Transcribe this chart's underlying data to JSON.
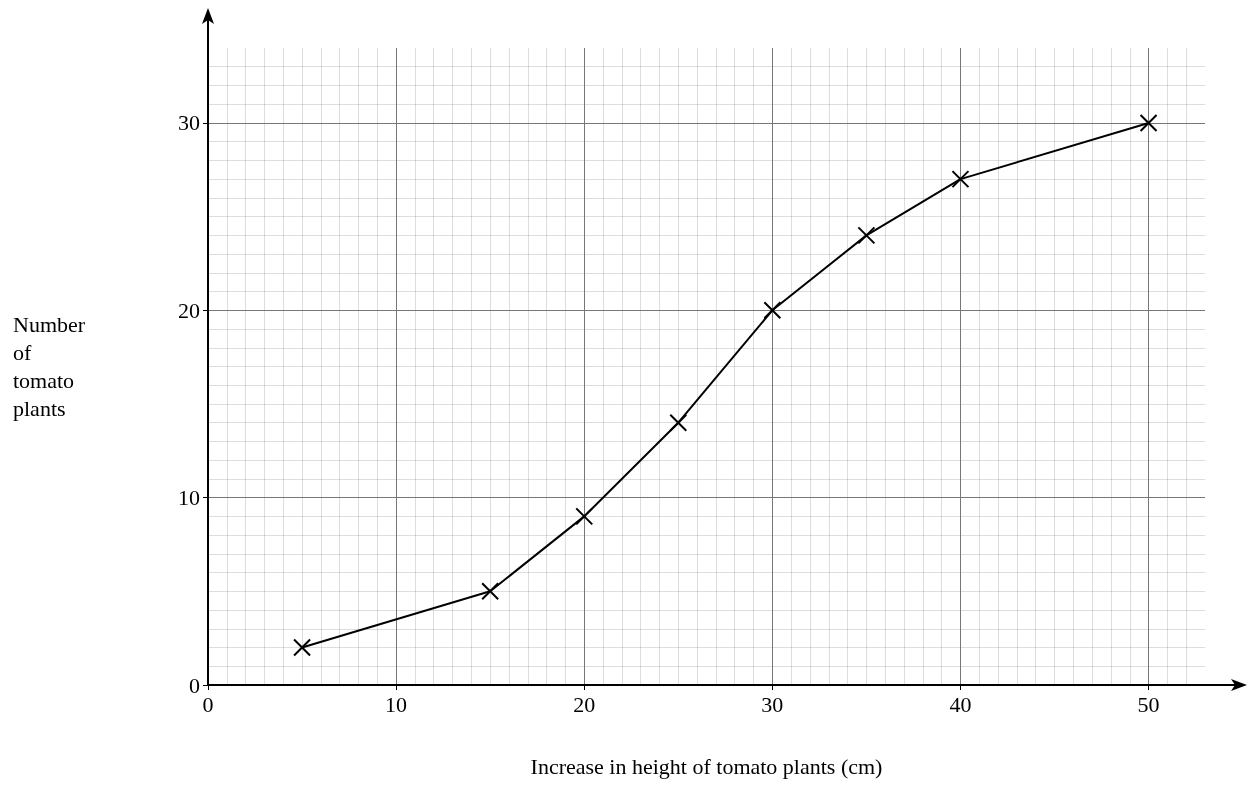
{
  "chart_data": {
    "type": "line",
    "xlabel": "Increase in height of tomato plants (cm)",
    "ylabel": "Number of tomato plants",
    "x": [
      5,
      15,
      20,
      25,
      30,
      35,
      40,
      50
    ],
    "series": [
      {
        "color": "#000000",
        "values": [
          2,
          5,
          9,
          14,
          20,
          24,
          27,
          30
        ]
      }
    ],
    "xlim": [
      0,
      53
    ],
    "ylim": [
      0,
      34
    ],
    "xticks": [
      0,
      10,
      20,
      30,
      40,
      50
    ],
    "yticks": [
      0,
      10,
      20,
      30
    ],
    "grid": true,
    "marker": "cross",
    "line_style": "solid"
  }
}
